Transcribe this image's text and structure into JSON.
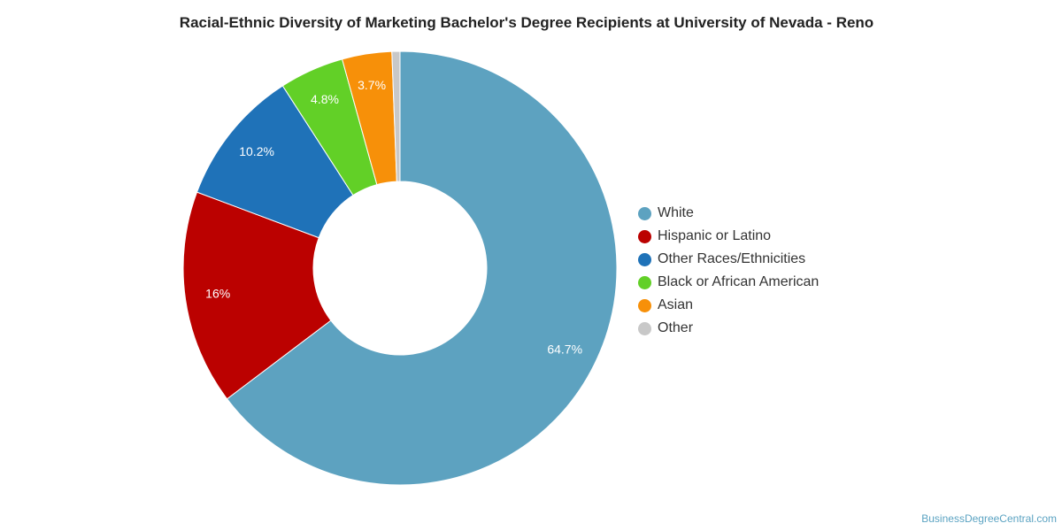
{
  "chart_data": {
    "type": "pie",
    "title": "Racial-Ethnic Diversity of Marketing Bachelor's Degree Recipients at University of Nevada - Reno",
    "donut": true,
    "legend_position": "right",
    "slices": [
      {
        "name": "White",
        "value": 64.7,
        "label": "64.7%",
        "color": "#5da2c0"
      },
      {
        "name": "Hispanic or Latino",
        "value": 16.0,
        "label": "16%",
        "color": "#bb0100"
      },
      {
        "name": "Other Races/Ethnicities",
        "value": 10.2,
        "label": "10.2%",
        "color": "#1f72b8"
      },
      {
        "name": "Black or African American",
        "value": 4.8,
        "label": "4.8%",
        "color": "#62d027"
      },
      {
        "name": "Asian",
        "value": 3.7,
        "label": "3.7%",
        "color": "#f79009"
      },
      {
        "name": "Other",
        "value": 0.6,
        "label": "",
        "color": "#c8c8c8"
      }
    ]
  },
  "footer": {
    "source": "BusinessDegreeCentral.com"
  }
}
